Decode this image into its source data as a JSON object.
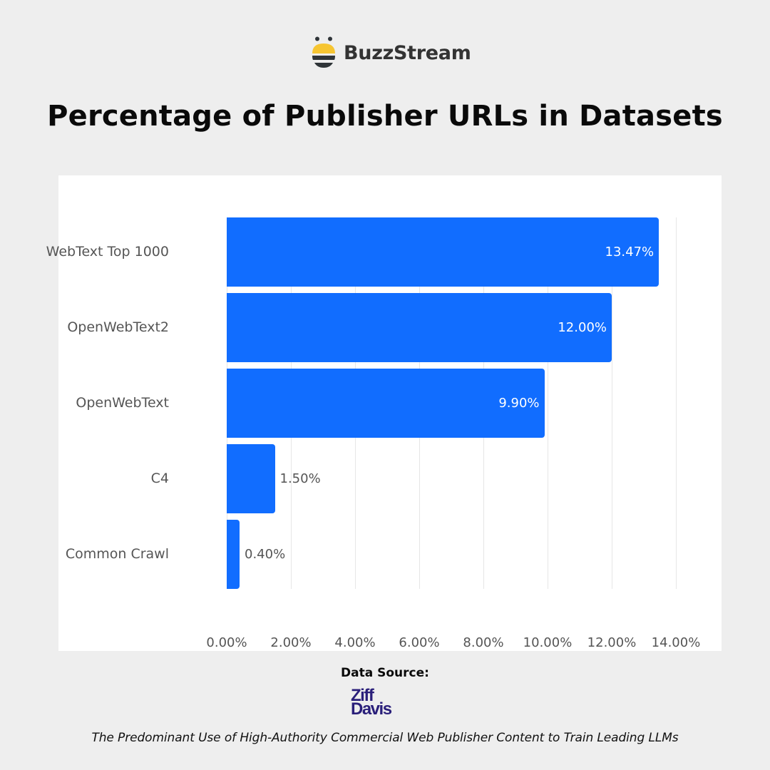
{
  "brand": {
    "name": "BuzzStream",
    "icon": "bee-icon",
    "colors": {
      "yellow": "#f6c532",
      "dark": "#2f3438"
    }
  },
  "title": "Percentage of Publisher URLs in Datasets",
  "colors": {
    "background": "#eeeeee",
    "card": "#ffffff",
    "bar": "#116dff",
    "label": "#555555",
    "gridline": "#e6e6e6"
  },
  "chart_data": {
    "type": "bar",
    "orientation": "horizontal",
    "title": "Percentage of Publisher URLs in Datasets",
    "categories": [
      "WebText Top 1000",
      "OpenWebText2",
      "OpenWebText",
      "C4",
      "Common Crawl"
    ],
    "values": [
      13.47,
      12.0,
      9.9,
      1.5,
      0.4
    ],
    "value_labels": [
      "13.47%",
      "12.00%",
      "9.90%",
      "1.50%",
      "0.40%"
    ],
    "xlabel": "",
    "ylabel": "",
    "xlim": [
      0,
      14
    ],
    "x_ticks": [
      0,
      2,
      4,
      6,
      8,
      10,
      12,
      14
    ],
    "x_tick_labels": [
      "0.00%",
      "2.00%",
      "4.00%",
      "6.00%",
      "8.00%",
      "10.00%",
      "12.00%",
      "14.00%"
    ],
    "grid": "vertical",
    "legend": "none"
  },
  "source": {
    "label": "Data Source:",
    "logo_line1": "Ziff",
    "logo_line2": "Davis",
    "logo_color": "#2a1f7a",
    "caption": "The Predominant Use of High-Authority Commercial Web Publisher Content to Train Leading LLMs"
  }
}
